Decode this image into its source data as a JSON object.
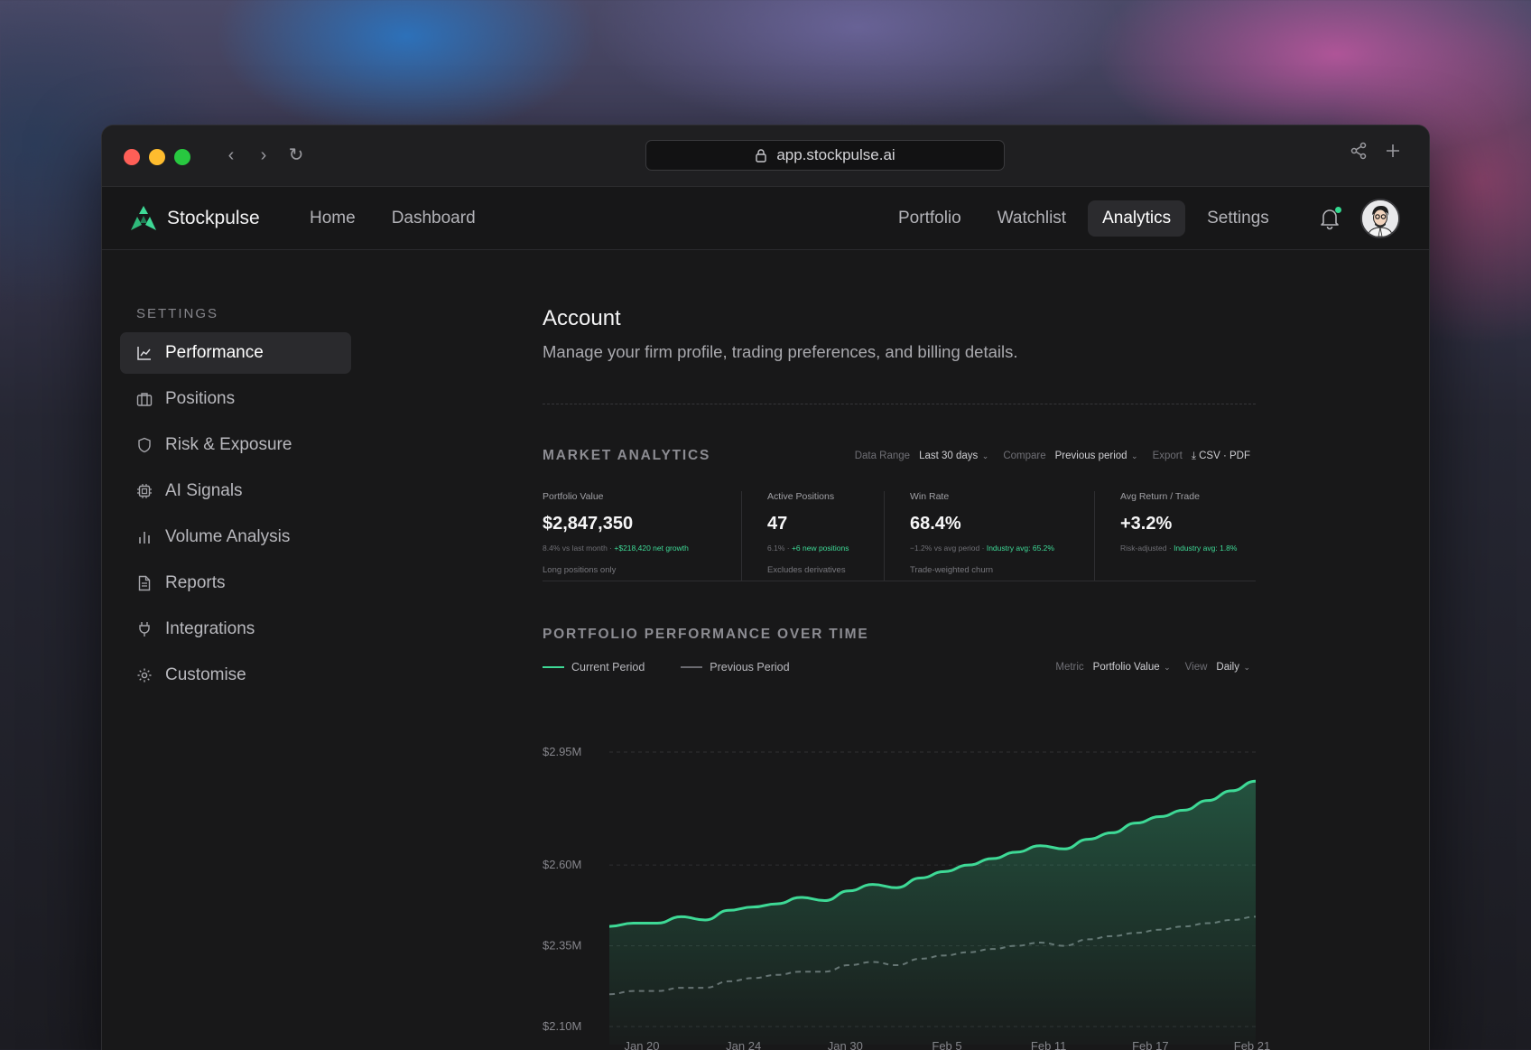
{
  "browser": {
    "url": "app.stockpulse.ai"
  },
  "app": {
    "brand": "Stockpulse",
    "nav_left": [
      "Home",
      "Dashboard"
    ],
    "nav_right": [
      "Portfolio",
      "Watchlist",
      "Analytics",
      "Settings"
    ],
    "active_nav": "Analytics",
    "accent_color": "#3ed996"
  },
  "sidebar": {
    "heading": "SETTINGS",
    "items": [
      {
        "label": "Performance",
        "icon": "line-chart-icon",
        "active": true
      },
      {
        "label": "Positions",
        "icon": "briefcase-icon"
      },
      {
        "label": "Risk & Exposure",
        "icon": "shield-icon"
      },
      {
        "label": "AI Signals",
        "icon": "cpu-icon"
      },
      {
        "label": "Volume Analysis",
        "icon": "bar-chart-icon"
      },
      {
        "label": "Reports",
        "icon": "document-icon"
      },
      {
        "label": "Integrations",
        "icon": "plug-icon"
      },
      {
        "label": "Customise",
        "icon": "gear-icon"
      }
    ]
  },
  "page": {
    "title": "Account",
    "subtitle": "Manage your firm profile, trading preferences, and billing details."
  },
  "market": {
    "title": "MARKET ANALYTICS",
    "data_range_label": "Data Range",
    "data_range_value": "Last 30 days",
    "compare_label": "Compare",
    "compare_value": "Previous period",
    "export_label": "Export",
    "export_value": "CSV · PDF"
  },
  "kpis": [
    {
      "label": "Portfolio Value",
      "value": "$2,847,350",
      "meta": "8.4% vs last month",
      "meta_pos": "+$218,420 net growth",
      "note": "Long positions only"
    },
    {
      "label": "Active Positions",
      "value": "47",
      "meta": "6.1%",
      "meta_pos": "+6 new positions",
      "note": "Excludes derivatives"
    },
    {
      "label": "Win Rate",
      "value": "68.4%",
      "meta": "−1.2% vs avg period",
      "meta_pos": "Industry avg: 65.2%",
      "note": "Trade-weighted churn"
    },
    {
      "label": "Avg Return / Trade",
      "value": "+3.2%",
      "meta": "Risk-adjusted",
      "meta_pos": "Industry avg: 1.8%",
      "note": ""
    }
  ],
  "performance": {
    "title": "PORTFOLIO PERFORMANCE OVER TIME",
    "legend_current": "Current Period",
    "legend_previous": "Previous Period",
    "metric_label": "Metric",
    "metric_value": "Portfolio Value",
    "view_label": "View",
    "view_value": "Daily"
  },
  "chart_data": {
    "type": "line",
    "y_ticks": [
      "$2.95M",
      "$2.60M",
      "$2.35M",
      "$2.10M"
    ],
    "y_tick_values": [
      2.95,
      2.6,
      2.35,
      2.1
    ],
    "ylim": [
      2.1,
      2.95
    ],
    "x_ticks": [
      "Jan 20",
      "Jan 24",
      "Jan 30",
      "Feb 5",
      "Feb 11",
      "Feb 17",
      "Feb 21"
    ],
    "grid": true,
    "series": [
      {
        "name": "Current Period",
        "style": "solid",
        "color": "#3ed996",
        "values": [
          2.41,
          2.42,
          2.42,
          2.44,
          2.43,
          2.46,
          2.47,
          2.48,
          2.5,
          2.49,
          2.52,
          2.54,
          2.53,
          2.56,
          2.58,
          2.6,
          2.62,
          2.64,
          2.66,
          2.65,
          2.68,
          2.7,
          2.73,
          2.75,
          2.77,
          2.8,
          2.83,
          2.86
        ]
      },
      {
        "name": "Previous Period",
        "style": "dashed",
        "color": "#6a6a70",
        "values": [
          2.2,
          2.21,
          2.21,
          2.22,
          2.22,
          2.24,
          2.25,
          2.26,
          2.27,
          2.27,
          2.29,
          2.3,
          2.29,
          2.31,
          2.32,
          2.33,
          2.34,
          2.35,
          2.36,
          2.35,
          2.37,
          2.38,
          2.39,
          2.4,
          2.41,
          2.42,
          2.43,
          2.44
        ]
      }
    ]
  }
}
